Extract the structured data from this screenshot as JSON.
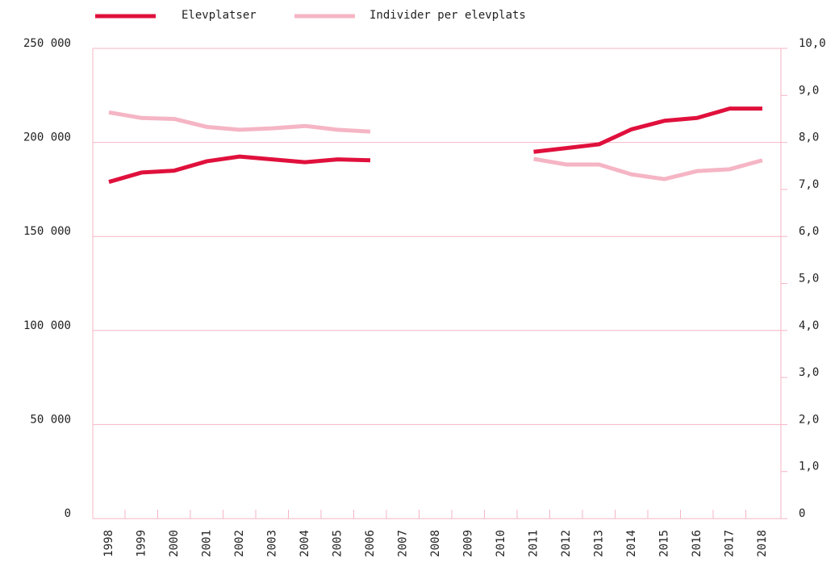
{
  "chart_data": {
    "type": "line",
    "categories": [
      "1998",
      "1999",
      "2000",
      "2001",
      "2002",
      "2003",
      "2004",
      "2005",
      "2006",
      "2007",
      "2008",
      "2009",
      "2010",
      "2011",
      "2012",
      "2013",
      "2014",
      "2015",
      "2016",
      "2017",
      "2018"
    ],
    "series": [
      {
        "name": "Elevplatser",
        "color": "#e0103c",
        "values": [
          179000,
          184000,
          185000,
          190000,
          192500,
          191000,
          189500,
          191000,
          190500,
          null,
          null,
          null,
          null,
          195000,
          197000,
          199000,
          207000,
          211500,
          213000,
          218000,
          218000
        ]
      },
      {
        "name": "Individer per elevplats",
        "color": "#f5b5c4",
        "axis": "y2",
        "values": [
          8.64,
          8.52,
          8.5,
          8.33,
          8.27,
          8.3,
          8.35,
          8.27,
          8.23,
          null,
          null,
          null,
          null,
          7.65,
          7.53,
          7.53,
          7.32,
          7.22,
          7.39,
          7.43,
          7.62
        ]
      }
    ],
    "ylim": [
      0,
      250000
    ],
    "yticks": [
      0,
      {
        "value": 50000,
        "label": "50 000"
      },
      {
        "value": 100000,
        "label": "100 000"
      },
      {
        "value": 150000,
        "label": "150 000"
      },
      {
        "value": 200000,
        "label": "200 000"
      },
      {
        "value": 250000,
        "label": "250 000"
      }
    ],
    "y2lim": [
      0,
      10
    ],
    "y2ticks": [
      0,
      {
        "value": 1,
        "label": "1,0"
      },
      {
        "value": 2,
        "label": "2,0"
      },
      {
        "value": 3,
        "label": "3,0"
      },
      {
        "value": 4,
        "label": "4,0"
      },
      {
        "value": 5,
        "label": "5,0"
      },
      {
        "value": 6,
        "label": "6,0"
      },
      {
        "value": 7,
        "label": "7,0"
      },
      {
        "value": 8,
        "label": "8,0"
      },
      {
        "value": 9,
        "label": "9,0"
      },
      {
        "value": 10,
        "label": "10,0"
      }
    ],
    "grid": true
  }
}
